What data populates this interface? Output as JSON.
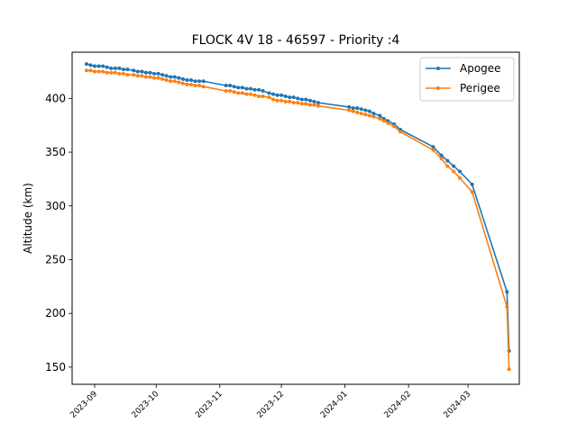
{
  "chart_data": {
    "type": "line",
    "title": "FLOCK 4V 18 - 46597 - Priority :4",
    "xlabel": "",
    "ylabel": "Altitude (km)",
    "x_ticks": [
      "2023-09",
      "2023-10",
      "2023-11",
      "2023-12",
      "2024-01",
      "2024-02",
      "2024-03"
    ],
    "y_ticks": [
      150,
      200,
      250,
      300,
      350,
      400
    ],
    "xlim": [
      "2023-08-21",
      "2024-03-26"
    ],
    "ylim": [
      134,
      443
    ],
    "grid": false,
    "legend_position": "top-right",
    "series": [
      {
        "name": "Apogee",
        "color": "#1f77b4",
        "points": [
          [
            "2023-08-28",
            432
          ],
          [
            "2023-08-30",
            431
          ],
          [
            "2023-09-01",
            430
          ],
          [
            "2023-09-03",
            430
          ],
          [
            "2023-09-05",
            430
          ],
          [
            "2023-09-07",
            429
          ],
          [
            "2023-09-09",
            428
          ],
          [
            "2023-09-11",
            428
          ],
          [
            "2023-09-13",
            428
          ],
          [
            "2023-09-15",
            427
          ],
          [
            "2023-09-17",
            427
          ],
          [
            "2023-09-20",
            426
          ],
          [
            "2023-09-22",
            425
          ],
          [
            "2023-09-24",
            425
          ],
          [
            "2023-09-26",
            424
          ],
          [
            "2023-09-28",
            424
          ],
          [
            "2023-09-30",
            423
          ],
          [
            "2023-10-02",
            423
          ],
          [
            "2023-10-04",
            422
          ],
          [
            "2023-10-06",
            421
          ],
          [
            "2023-10-08",
            420
          ],
          [
            "2023-10-10",
            420
          ],
          [
            "2023-10-12",
            419
          ],
          [
            "2023-10-14",
            418
          ],
          [
            "2023-10-16",
            417
          ],
          [
            "2023-10-18",
            417
          ],
          [
            "2023-10-20",
            416
          ],
          [
            "2023-10-22",
            416
          ],
          [
            "2023-10-24",
            416
          ],
          [
            "2023-11-04",
            412
          ],
          [
            "2023-11-06",
            412
          ],
          [
            "2023-11-08",
            411
          ],
          [
            "2023-11-10",
            410
          ],
          [
            "2023-11-12",
            410
          ],
          [
            "2023-11-14",
            409
          ],
          [
            "2023-11-16",
            409
          ],
          [
            "2023-11-18",
            408
          ],
          [
            "2023-11-20",
            408
          ],
          [
            "2023-11-22",
            407
          ],
          [
            "2023-11-25",
            405
          ],
          [
            "2023-11-27",
            404
          ],
          [
            "2023-11-29",
            403
          ],
          [
            "2023-12-01",
            403
          ],
          [
            "2023-12-03",
            402
          ],
          [
            "2023-12-05",
            401
          ],
          [
            "2023-12-07",
            401
          ],
          [
            "2023-12-09",
            400
          ],
          [
            "2023-12-11",
            399
          ],
          [
            "2023-12-13",
            399
          ],
          [
            "2023-12-15",
            398
          ],
          [
            "2023-12-17",
            397
          ],
          [
            "2023-12-19",
            396
          ],
          [
            "2024-01-03",
            392
          ],
          [
            "2024-01-05",
            391
          ],
          [
            "2024-01-07",
            391
          ],
          [
            "2024-01-09",
            390
          ],
          [
            "2024-01-11",
            389
          ],
          [
            "2024-01-13",
            388
          ],
          [
            "2024-01-15",
            386
          ],
          [
            "2024-01-18",
            384
          ],
          [
            "2024-01-20",
            381
          ],
          [
            "2024-01-22",
            379
          ],
          [
            "2024-01-25",
            376
          ],
          [
            "2024-01-28",
            371
          ],
          [
            "2024-02-13",
            355
          ],
          [
            "2024-02-17",
            347
          ],
          [
            "2024-02-20",
            342
          ],
          [
            "2024-02-23",
            337
          ],
          [
            "2024-02-26",
            332
          ],
          [
            "2024-03-03",
            320
          ],
          [
            "2024-03-20",
            220
          ],
          [
            "2024-03-21",
            165
          ]
        ]
      },
      {
        "name": "Perigee",
        "color": "#ff7f0e",
        "points": [
          [
            "2023-08-28",
            426
          ],
          [
            "2023-08-30",
            426
          ],
          [
            "2023-09-01",
            425
          ],
          [
            "2023-09-03",
            425
          ],
          [
            "2023-09-05",
            425
          ],
          [
            "2023-09-07",
            424
          ],
          [
            "2023-09-09",
            424
          ],
          [
            "2023-09-11",
            424
          ],
          [
            "2023-09-13",
            423
          ],
          [
            "2023-09-15",
            423
          ],
          [
            "2023-09-17",
            422
          ],
          [
            "2023-09-20",
            422
          ],
          [
            "2023-09-22",
            421
          ],
          [
            "2023-09-24",
            421
          ],
          [
            "2023-09-26",
            420
          ],
          [
            "2023-09-28",
            420
          ],
          [
            "2023-09-30",
            419
          ],
          [
            "2023-10-02",
            419
          ],
          [
            "2023-10-04",
            418
          ],
          [
            "2023-10-06",
            417
          ],
          [
            "2023-10-08",
            416
          ],
          [
            "2023-10-10",
            416
          ],
          [
            "2023-10-12",
            415
          ],
          [
            "2023-10-14",
            414
          ],
          [
            "2023-10-16",
            413
          ],
          [
            "2023-10-18",
            413
          ],
          [
            "2023-10-20",
            412
          ],
          [
            "2023-10-22",
            412
          ],
          [
            "2023-10-24",
            411
          ],
          [
            "2023-11-04",
            407
          ],
          [
            "2023-11-06",
            407
          ],
          [
            "2023-11-08",
            406
          ],
          [
            "2023-11-10",
            405
          ],
          [
            "2023-11-12",
            405
          ],
          [
            "2023-11-14",
            404
          ],
          [
            "2023-11-16",
            404
          ],
          [
            "2023-11-18",
            403
          ],
          [
            "2023-11-20",
            402
          ],
          [
            "2023-11-22",
            402
          ],
          [
            "2023-11-25",
            401
          ],
          [
            "2023-11-27",
            399
          ],
          [
            "2023-11-29",
            398
          ],
          [
            "2023-12-01",
            398
          ],
          [
            "2023-12-03",
            397
          ],
          [
            "2023-12-05",
            397
          ],
          [
            "2023-12-07",
            396
          ],
          [
            "2023-12-09",
            396
          ],
          [
            "2023-12-11",
            395
          ],
          [
            "2023-12-13",
            395
          ],
          [
            "2023-12-15",
            394
          ],
          [
            "2023-12-17",
            394
          ],
          [
            "2023-12-19",
            393
          ],
          [
            "2024-01-03",
            389
          ],
          [
            "2024-01-05",
            388
          ],
          [
            "2024-01-07",
            387
          ],
          [
            "2024-01-09",
            386
          ],
          [
            "2024-01-11",
            385
          ],
          [
            "2024-01-13",
            384
          ],
          [
            "2024-01-15",
            383
          ],
          [
            "2024-01-18",
            381
          ],
          [
            "2024-01-20",
            379
          ],
          [
            "2024-01-22",
            377
          ],
          [
            "2024-01-25",
            374
          ],
          [
            "2024-01-28",
            369
          ],
          [
            "2024-02-13",
            352
          ],
          [
            "2024-02-17",
            344
          ],
          [
            "2024-02-20",
            337
          ],
          [
            "2024-02-23",
            332
          ],
          [
            "2024-02-26",
            326
          ],
          [
            "2024-03-03",
            313
          ],
          [
            "2024-03-20",
            206
          ],
          [
            "2024-03-21",
            148
          ]
        ]
      }
    ]
  }
}
